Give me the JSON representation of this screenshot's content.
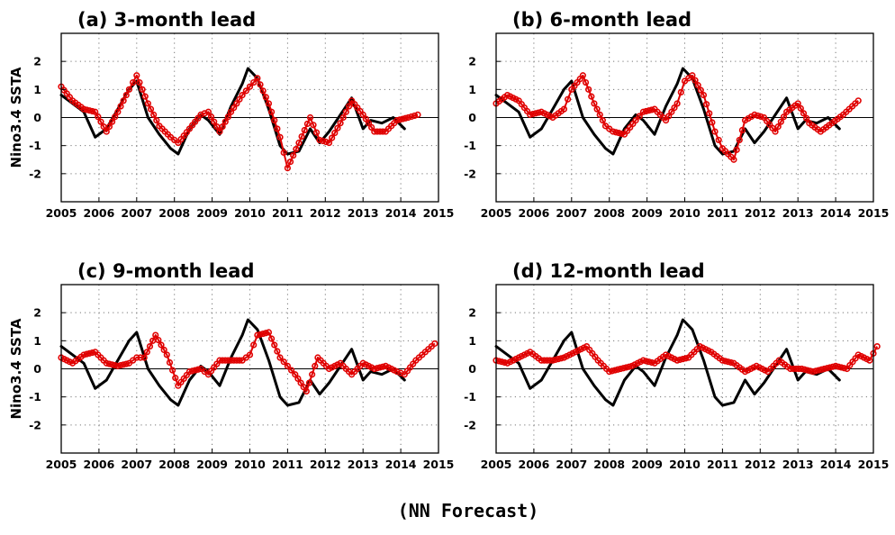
{
  "figure": {
    "footer": "(NN Forecast)"
  },
  "chart_data": [
    {
      "type": "line",
      "title": "(a) 3-month lead",
      "ylabel": "Nino3.4 SSTA",
      "xlim": [
        2005,
        2015
      ],
      "ylim": [
        -3,
        3
      ],
      "xticks": [
        2005,
        2006,
        2007,
        2008,
        2009,
        2010,
        2011,
        2012,
        2013,
        2014,
        2015
      ],
      "yticks": [
        -2,
        -1,
        0,
        1,
        2
      ],
      "grid": true,
      "series": [
        {
          "color": "#000000",
          "marker": "none",
          "x": [
            2005.0,
            2005.3,
            2005.6,
            2005.9,
            2006.2,
            2006.5,
            2006.8,
            2007.0,
            2007.3,
            2007.6,
            2007.9,
            2008.1,
            2008.4,
            2008.7,
            2008.9,
            2009.2,
            2009.5,
            2009.8,
            2009.95,
            2010.2,
            2010.5,
            2010.8,
            2011.0,
            2011.3,
            2011.6,
            2011.85,
            2012.1,
            2012.4,
            2012.7,
            2013.0,
            2013.2,
            2013.5,
            2013.8,
            2014.1
          ],
          "y": [
            0.8,
            0.5,
            0.2,
            -0.7,
            -0.4,
            0.3,
            1.0,
            1.3,
            0.0,
            -0.6,
            -1.1,
            -1.3,
            -0.4,
            0.1,
            -0.1,
            -0.6,
            0.4,
            1.2,
            1.75,
            1.4,
            0.3,
            -1.0,
            -1.3,
            -1.2,
            -0.4,
            -0.9,
            -0.5,
            0.1,
            0.7,
            -0.4,
            -0.1,
            -0.2,
            0.0,
            -0.4
          ]
        },
        {
          "color": "#e00000",
          "marker": "circle",
          "x": [
            2005.0,
            2005.3,
            2005.6,
            2005.9,
            2006.2,
            2006.5,
            2006.8,
            2007.0,
            2007.3,
            2007.6,
            2007.9,
            2008.1,
            2008.4,
            2008.7,
            2008.9,
            2009.2,
            2009.5,
            2009.8,
            2010.0,
            2010.2,
            2010.5,
            2010.8,
            2011.0,
            2011.3,
            2011.6,
            2011.85,
            2012.1,
            2012.4,
            2012.7,
            2013.0,
            2013.3,
            2013.6,
            2013.9,
            2014.2,
            2014.45
          ],
          "y": [
            1.1,
            0.6,
            0.3,
            0.2,
            -0.5,
            0.2,
            1.0,
            1.5,
            0.5,
            -0.3,
            -0.7,
            -0.9,
            -0.4,
            0.1,
            0.2,
            -0.5,
            0.2,
            0.8,
            1.1,
            1.4,
            0.5,
            -0.7,
            -1.8,
            -0.9,
            0.0,
            -0.8,
            -0.9,
            -0.2,
            0.6,
            0.1,
            -0.5,
            -0.5,
            -0.1,
            0.0,
            0.1
          ]
        }
      ]
    },
    {
      "type": "line",
      "title": "(b) 6-month lead",
      "ylabel": "",
      "xlim": [
        2005,
        2015
      ],
      "ylim": [
        -3,
        3
      ],
      "xticks": [
        2005,
        2006,
        2007,
        2008,
        2009,
        2010,
        2011,
        2012,
        2013,
        2014,
        2015
      ],
      "yticks": [
        -2,
        -1,
        0,
        1,
        2
      ],
      "grid": true,
      "series": [
        {
          "color": "#000000",
          "marker": "none",
          "x": [
            2005.0,
            2005.3,
            2005.6,
            2005.9,
            2006.2,
            2006.5,
            2006.8,
            2007.0,
            2007.3,
            2007.6,
            2007.9,
            2008.1,
            2008.4,
            2008.7,
            2008.9,
            2009.2,
            2009.5,
            2009.8,
            2009.95,
            2010.2,
            2010.5,
            2010.8,
            2011.0,
            2011.3,
            2011.6,
            2011.85,
            2012.1,
            2012.4,
            2012.7,
            2013.0,
            2013.2,
            2013.5,
            2013.8,
            2014.1
          ],
          "y": [
            0.8,
            0.5,
            0.2,
            -0.7,
            -0.4,
            0.3,
            1.0,
            1.3,
            0.0,
            -0.6,
            -1.1,
            -1.3,
            -0.4,
            0.1,
            -0.1,
            -0.6,
            0.4,
            1.2,
            1.75,
            1.4,
            0.3,
            -1.0,
            -1.3,
            -1.2,
            -0.4,
            -0.9,
            -0.5,
            0.1,
            0.7,
            -0.4,
            -0.1,
            -0.2,
            0.0,
            -0.4
          ]
        },
        {
          "color": "#e00000",
          "marker": "circle",
          "x": [
            2005.0,
            2005.3,
            2005.6,
            2005.9,
            2006.2,
            2006.5,
            2006.8,
            2007.0,
            2007.3,
            2007.6,
            2007.9,
            2008.1,
            2008.4,
            2008.7,
            2008.9,
            2009.2,
            2009.5,
            2009.8,
            2010.0,
            2010.2,
            2010.5,
            2010.8,
            2011.0,
            2011.3,
            2011.6,
            2011.85,
            2012.1,
            2012.4,
            2012.7,
            2013.0,
            2013.3,
            2013.6,
            2013.9,
            2014.2,
            2014.6
          ],
          "y": [
            0.5,
            0.8,
            0.6,
            0.1,
            0.2,
            0.0,
            0.3,
            1.0,
            1.5,
            0.5,
            -0.3,
            -0.5,
            -0.6,
            -0.1,
            0.2,
            0.3,
            -0.1,
            0.5,
            1.3,
            1.5,
            0.8,
            -0.5,
            -1.1,
            -1.5,
            -0.1,
            0.1,
            0.0,
            -0.5,
            0.2,
            0.5,
            -0.2,
            -0.5,
            -0.2,
            0.1,
            0.6
          ]
        }
      ]
    },
    {
      "type": "line",
      "title": "(c) 9-month lead",
      "ylabel": "Nino3.4 SSTA",
      "xlim": [
        2005,
        2015
      ],
      "ylim": [
        -3,
        3
      ],
      "xticks": [
        2005,
        2006,
        2007,
        2008,
        2009,
        2010,
        2011,
        2012,
        2013,
        2014,
        2015
      ],
      "yticks": [
        -2,
        -1,
        0,
        1,
        2
      ],
      "grid": true,
      "series": [
        {
          "color": "#000000",
          "marker": "none",
          "x": [
            2005.0,
            2005.3,
            2005.6,
            2005.9,
            2006.2,
            2006.5,
            2006.8,
            2007.0,
            2007.3,
            2007.6,
            2007.9,
            2008.1,
            2008.4,
            2008.7,
            2008.9,
            2009.2,
            2009.5,
            2009.8,
            2009.95,
            2010.2,
            2010.5,
            2010.8,
            2011.0,
            2011.3,
            2011.6,
            2011.85,
            2012.1,
            2012.4,
            2012.7,
            2013.0,
            2013.2,
            2013.5,
            2013.8,
            2014.1
          ],
          "y": [
            0.8,
            0.5,
            0.2,
            -0.7,
            -0.4,
            0.3,
            1.0,
            1.3,
            0.0,
            -0.6,
            -1.1,
            -1.3,
            -0.4,
            0.1,
            -0.1,
            -0.6,
            0.4,
            1.2,
            1.75,
            1.4,
            0.3,
            -1.0,
            -1.3,
            -1.2,
            -0.4,
            -0.9,
            -0.5,
            0.1,
            0.7,
            -0.4,
            -0.1,
            -0.2,
            0.0,
            -0.4
          ]
        },
        {
          "color": "#e00000",
          "marker": "circle",
          "x": [
            2005.0,
            2005.3,
            2005.6,
            2005.9,
            2006.2,
            2006.5,
            2006.8,
            2007.0,
            2007.2,
            2007.5,
            2007.8,
            2008.1,
            2008.4,
            2008.7,
            2008.9,
            2009.2,
            2009.5,
            2009.8,
            2010.0,
            2010.2,
            2010.5,
            2010.8,
            2011.0,
            2011.2,
            2011.5,
            2011.8,
            2012.1,
            2012.4,
            2012.7,
            2013.0,
            2013.3,
            2013.6,
            2013.9,
            2014.1,
            2014.4,
            2014.9
          ],
          "y": [
            0.4,
            0.2,
            0.5,
            0.6,
            0.2,
            0.1,
            0.2,
            0.4,
            0.4,
            1.2,
            0.5,
            -0.6,
            -0.1,
            0.0,
            -0.2,
            0.3,
            0.3,
            0.3,
            0.5,
            1.2,
            1.3,
            0.4,
            0.1,
            -0.2,
            -0.8,
            0.4,
            0.0,
            0.2,
            -0.2,
            0.2,
            0.0,
            0.1,
            -0.1,
            -0.2,
            0.3,
            0.9
          ]
        }
      ]
    },
    {
      "type": "line",
      "title": "(d) 12-month lead",
      "ylabel": "",
      "xlim": [
        2005,
        2015
      ],
      "ylim": [
        -3,
        3
      ],
      "xticks": [
        2005,
        2006,
        2007,
        2008,
        2009,
        2010,
        2011,
        2012,
        2013,
        2014,
        2015
      ],
      "yticks": [
        -2,
        -1,
        0,
        1,
        2
      ],
      "grid": true,
      "series": [
        {
          "color": "#000000",
          "marker": "none",
          "x": [
            2005.0,
            2005.3,
            2005.6,
            2005.9,
            2006.2,
            2006.5,
            2006.8,
            2007.0,
            2007.3,
            2007.6,
            2007.9,
            2008.1,
            2008.4,
            2008.7,
            2008.9,
            2009.2,
            2009.5,
            2009.8,
            2009.95,
            2010.2,
            2010.5,
            2010.8,
            2011.0,
            2011.3,
            2011.6,
            2011.85,
            2012.1,
            2012.4,
            2012.7,
            2013.0,
            2013.2,
            2013.5,
            2013.8,
            2014.1
          ],
          "y": [
            0.8,
            0.5,
            0.2,
            -0.7,
            -0.4,
            0.3,
            1.0,
            1.3,
            0.0,
            -0.6,
            -1.1,
            -1.3,
            -0.4,
            0.1,
            -0.1,
            -0.6,
            0.4,
            1.2,
            1.75,
            1.4,
            0.3,
            -1.0,
            -1.3,
            -1.2,
            -0.4,
            -0.9,
            -0.5,
            0.1,
            0.7,
            -0.4,
            -0.1,
            -0.2,
            0.0,
            -0.4
          ]
        },
        {
          "color": "#e00000",
          "marker": "circle",
          "x": [
            2005.0,
            2005.3,
            2005.6,
            2005.9,
            2006.2,
            2006.5,
            2006.8,
            2007.1,
            2007.4,
            2007.7,
            2008.0,
            2008.3,
            2008.6,
            2008.9,
            2009.2,
            2009.5,
            2009.8,
            2010.1,
            2010.4,
            2010.7,
            2011.0,
            2011.3,
            2011.6,
            2011.9,
            2012.2,
            2012.5,
            2012.8,
            2013.1,
            2013.4,
            2013.7,
            2014.0,
            2014.3,
            2014.6,
            2014.9,
            2015.1
          ],
          "y": [
            0.3,
            0.2,
            0.4,
            0.6,
            0.3,
            0.3,
            0.4,
            0.6,
            0.8,
            0.3,
            -0.1,
            0.0,
            0.1,
            0.3,
            0.2,
            0.5,
            0.3,
            0.4,
            0.8,
            0.6,
            0.3,
            0.2,
            -0.1,
            0.1,
            -0.1,
            0.3,
            0.0,
            0.0,
            -0.1,
            0.0,
            0.1,
            0.0,
            0.5,
            0.3,
            0.8
          ]
        }
      ]
    }
  ]
}
